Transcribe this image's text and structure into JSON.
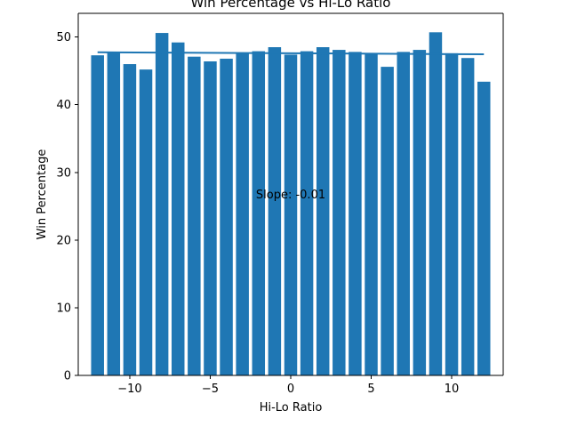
{
  "chart_data": {
    "type": "bar",
    "title": "Win Percentage vs Hi-Lo Ratio",
    "xlabel": "Hi-Lo Ratio",
    "ylabel": "Win Percentage",
    "xlim": [
      -13.2,
      13.2
    ],
    "ylim": [
      0,
      53.5
    ],
    "xticks": [
      -10,
      -5,
      0,
      5,
      10
    ],
    "xtick_labels": [
      "−10",
      "−5",
      "0",
      "5",
      "10"
    ],
    "yticks": [
      0,
      10,
      20,
      30,
      40,
      50
    ],
    "ytick_labels": [
      "0",
      "10",
      "20",
      "30",
      "40",
      "50"
    ],
    "grid": false,
    "bar_color": "#1f77b4",
    "line_color": "#1f77b4",
    "x": [
      -12,
      -11,
      -10,
      -9,
      -8,
      -7,
      -6,
      -5,
      -4,
      -3,
      -2,
      -1,
      0,
      1,
      2,
      3,
      4,
      5,
      6,
      7,
      8,
      9,
      10,
      11,
      12
    ],
    "values": [
      47.3,
      47.7,
      46.0,
      45.2,
      50.6,
      49.2,
      47.1,
      46.4,
      46.8,
      47.7,
      47.9,
      48.5,
      47.4,
      47.9,
      48.5,
      48.1,
      47.8,
      47.6,
      45.6,
      47.8,
      48.1,
      50.7,
      47.6,
      46.9,
      43.4
    ],
    "trend_line": {
      "x": [
        -12,
        12
      ],
      "y": [
        47.75,
        47.45
      ]
    },
    "annotation": "Slope: -0.01"
  }
}
